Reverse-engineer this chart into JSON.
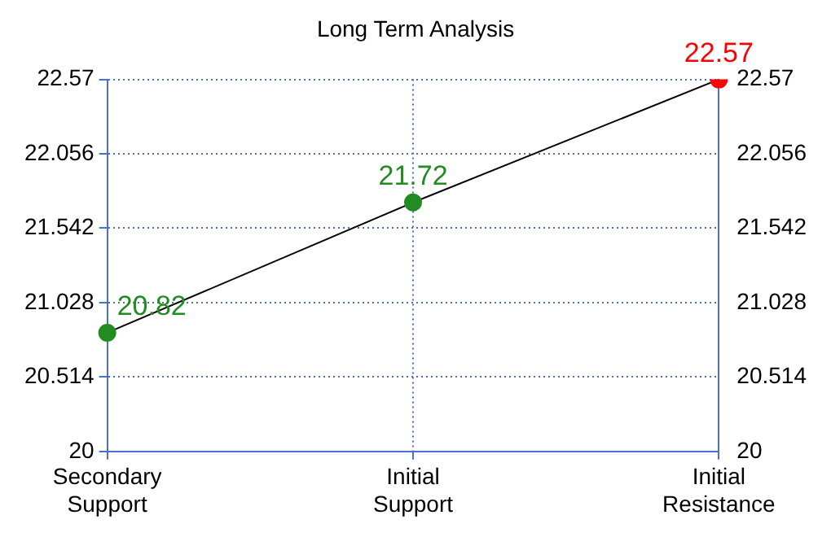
{
  "chart_data": {
    "type": "line",
    "title": "Long Term Analysis",
    "categories": [
      "Secondary Support",
      "Initial Support",
      "Initial Resistance"
    ],
    "series": [
      {
        "color": "#000000",
        "colors": [
          "#228b22",
          "#228b22",
          "#ff0000"
        ],
        "values": [
          20.82,
          21.72,
          22.57
        ]
      }
    ],
    "ylim": [
      20,
      22.57
    ],
    "yticks": [
      20,
      20.514,
      21.028,
      21.542,
      22.056,
      22.57
    ],
    "y2lim": [
      20,
      22.57
    ],
    "y2ticks": [
      20,
      20.514,
      21.028,
      21.542,
      22.056,
      22.57
    ],
    "grid": true,
    "legend": false,
    "marker": "circle",
    "line_style": "solid",
    "data_labels": true
  }
}
